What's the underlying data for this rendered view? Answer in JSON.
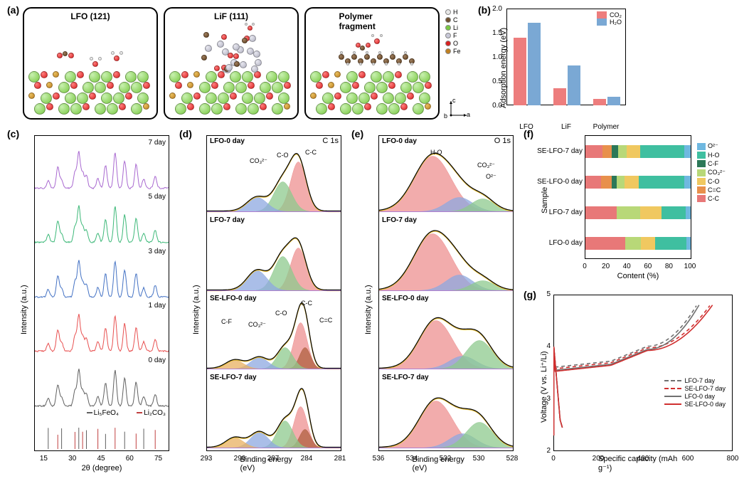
{
  "labels": {
    "a": "(a)",
    "b": "(b)",
    "c": "(c)",
    "d": "(d)",
    "e": "(e)",
    "f": "(f)",
    "g": "(g)"
  },
  "panelA": {
    "boxes": [
      {
        "title": "LFO (121)"
      },
      {
        "title": "LiF (111)"
      },
      {
        "title": "Polymer fragment"
      }
    ],
    "legend": [
      {
        "label": "H",
        "color": "#e8e8e8"
      },
      {
        "label": "C",
        "color": "#705030"
      },
      {
        "label": "Li",
        "color": "#7ac943"
      },
      {
        "label": "F",
        "color": "#c8c8d8"
      },
      {
        "label": "O",
        "color": "#d92020"
      },
      {
        "label": "Fe",
        "color": "#c08020"
      }
    ],
    "axes": {
      "a": "a",
      "b": "b",
      "c": "c"
    }
  },
  "panelB": {
    "ylabel": "Adsorption energy (eV)",
    "ylim": [
      0,
      2.0
    ],
    "yticks": [
      0.0,
      0.5,
      1.0,
      1.5,
      2.0
    ],
    "categories": [
      "LFO",
      "LiF",
      "Polymer"
    ],
    "series": [
      {
        "name": "CO₂",
        "color": "#ed7d7d",
        "values": [
          1.4,
          0.36,
          0.13
        ]
      },
      {
        "name": "H₂O",
        "color": "#7aa8d4",
        "values": [
          1.7,
          0.82,
          0.17
        ]
      }
    ]
  },
  "panelC": {
    "ylabel": "Intensity (a.u.)",
    "xlabel": "2θ (degree)",
    "xlim": [
      10,
      80
    ],
    "xticks": [
      15,
      30,
      45,
      60,
      75
    ],
    "traces": [
      {
        "label": "7 day",
        "color": "#a868d0"
      },
      {
        "label": "5 day",
        "color": "#3cb878"
      },
      {
        "label": "3 day",
        "color": "#4472c4"
      },
      {
        "label": "1 day",
        "color": "#e85050"
      },
      {
        "label": "0 day",
        "color": "#606060"
      }
    ],
    "refs": [
      {
        "label": "Li₅FeO₄",
        "color": "#606060"
      },
      {
        "label": "Li₂CO₃",
        "color": "#c04040"
      }
    ]
  },
  "panelD": {
    "corner": "C 1s",
    "ylabel": "Intensity (a.u.)",
    "xlabel": "Binding energy (eV)",
    "xlim": [
      293,
      281
    ],
    "xticks": [
      293,
      290,
      287,
      284,
      281
    ],
    "subs": [
      "LFO-0 day",
      "LFO-7 day",
      "SE-LFO-0 day",
      "SE-LFO-7 day"
    ],
    "peaks_top": [
      "CO₃²⁻",
      "C-O",
      "C-C"
    ],
    "peaks_mid": [
      "C-F",
      "CO₃²⁻",
      "C-O",
      "C-C",
      "C=C"
    ],
    "fill_colors": {
      "CC": "#ed9090",
      "CO": "#8ec98e",
      "CO3": "#8ea8e0",
      "CF": "#e8b060",
      "CeqC": "#b06040"
    }
  },
  "panelE": {
    "corner": "O 1s",
    "ylabel": "Intensity (a.u.)",
    "xlabel": "Binding energy (eV)",
    "xlim": [
      536,
      528
    ],
    "xticks": [
      536,
      534,
      532,
      530,
      528
    ],
    "subs": [
      "LFO-0 day",
      "LFO-7 day",
      "SE-LFO-0 day",
      "SE-LFO-7 day"
    ],
    "peaks": [
      "H-O",
      "CO₃²⁻",
      "O²⁻"
    ],
    "fill_colors": {
      "HO": "#ed9090",
      "CO3": "#8ea8e0",
      "O2": "#8ec98e"
    }
  },
  "panelF": {
    "ylabel": "Sample",
    "xlabel": "Content (%)",
    "xlim": [
      0,
      100
    ],
    "xticks": [
      0,
      20,
      40,
      60,
      80,
      100
    ],
    "rows": [
      {
        "label": "SE-LFO-7 day",
        "segs": [
          16,
          9,
          6,
          8,
          13,
          42,
          6
        ]
      },
      {
        "label": "SE-LFO-0 day",
        "segs": [
          15,
          10,
          5,
          7,
          14,
          43,
          6
        ]
      },
      {
        "label": "LFO-7 day",
        "segs": [
          30,
          0,
          0,
          22,
          20,
          23,
          5
        ]
      },
      {
        "label": "LFO-0 day",
        "segs": [
          38,
          0,
          0,
          15,
          13,
          30,
          4
        ]
      }
    ],
    "legend": [
      {
        "label": "O²⁻",
        "color": "#6fb8e0"
      },
      {
        "label": "H-O",
        "color": "#3fbfa0"
      },
      {
        "label": "C-F",
        "color": "#2c7858"
      },
      {
        "label": "CO₃²⁻",
        "color": "#b8d878"
      },
      {
        "label": "C-O",
        "color": "#f0c860"
      },
      {
        "label": "C=C",
        "color": "#e8904c"
      },
      {
        "label": "C-C",
        "color": "#e87878"
      }
    ],
    "seg_colors": [
      "#e87878",
      "#e8904c",
      "#2c7858",
      "#b8d878",
      "#f0c860",
      "#3fbfa0",
      "#6fb8e0"
    ]
  },
  "panelG": {
    "ylabel": "Voltage (V vs. Li⁺/Li)",
    "xlabel": "Specific capacity (mAh g⁻¹)",
    "xlim": [
      0,
      800
    ],
    "xticks": [
      0,
      200,
      400,
      600,
      800
    ],
    "ylim": [
      2,
      5
    ],
    "yticks": [
      2,
      3,
      4,
      5
    ],
    "series": [
      {
        "name": "LFO-7 day",
        "color": "#707070",
        "dash": true
      },
      {
        "name": "SE-LFO-7 day",
        "color": "#d03030",
        "dash": true
      },
      {
        "name": "LFO-0 day",
        "color": "#707070",
        "dash": false
      },
      {
        "name": "SE-LFO-0 day",
        "color": "#d03030",
        "dash": false
      }
    ]
  }
}
